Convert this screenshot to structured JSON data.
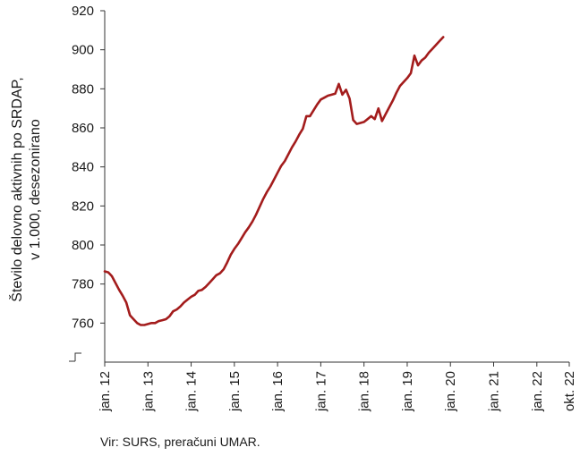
{
  "chart_data": {
    "type": "line",
    "ylabel_line1": "Število delovno aktivnih po SRDAP,",
    "ylabel_line2": "v 1.000, desezonirano",
    "ylim": [
      740,
      920
    ],
    "yticks": [
      760,
      780,
      800,
      820,
      840,
      860,
      880,
      900,
      920
    ],
    "x_tick_labels": [
      "jan. 12",
      "jan. 13",
      "jan. 14",
      "jan. 15",
      "jan. 16",
      "jan. 17",
      "jan. 18",
      "jan. 19",
      "jan. 20",
      "jan. 21",
      "jan. 22",
      "okt. 22"
    ],
    "x_tick_positions": [
      0,
      12,
      24,
      36,
      48,
      60,
      72,
      84,
      96,
      108,
      120,
      129
    ],
    "grid": false,
    "line_color": "#a31c1c",
    "series": [
      {
        "points": [
          [
            0,
            786.5
          ],
          [
            1,
            786
          ],
          [
            2,
            784
          ],
          [
            3,
            780.5
          ],
          [
            4,
            777
          ],
          [
            5,
            774
          ],
          [
            6,
            770.5
          ],
          [
            7,
            764
          ],
          [
            8,
            762
          ],
          [
            9,
            760
          ],
          [
            10,
            759
          ],
          [
            11,
            759
          ],
          [
            12,
            759.5
          ],
          [
            13,
            760
          ],
          [
            14,
            760
          ],
          [
            15,
            761
          ],
          [
            16,
            761.5
          ],
          [
            17,
            762
          ],
          [
            18,
            763.5
          ],
          [
            19,
            766
          ],
          [
            20,
            767
          ],
          [
            21,
            768.5
          ],
          [
            22,
            770.5
          ],
          [
            23,
            772
          ],
          [
            24,
            773.5
          ],
          [
            25,
            774.5
          ],
          [
            26,
            776.5
          ],
          [
            27,
            777
          ],
          [
            28,
            778.5
          ],
          [
            29,
            780.5
          ],
          [
            30,
            782.5
          ],
          [
            31,
            784.5
          ],
          [
            32,
            785.5
          ],
          [
            33,
            787.5
          ],
          [
            34,
            791
          ],
          [
            35,
            795
          ],
          [
            36,
            798
          ],
          [
            37,
            800.5
          ],
          [
            38,
            803.5
          ],
          [
            39,
            806.5
          ],
          [
            40,
            809
          ],
          [
            41,
            812
          ],
          [
            42,
            815.5
          ],
          [
            43,
            819.5
          ],
          [
            44,
            823.5
          ],
          [
            45,
            827
          ],
          [
            46,
            830
          ],
          [
            47,
            833.5
          ],
          [
            48,
            837
          ],
          [
            49,
            840.5
          ],
          [
            50,
            843
          ],
          [
            51,
            846.5
          ],
          [
            52,
            850
          ],
          [
            53,
            853
          ],
          [
            54,
            856.5
          ],
          [
            55,
            859.5
          ],
          [
            56,
            866
          ],
          [
            57,
            866
          ],
          [
            58,
            869
          ],
          [
            59,
            872
          ],
          [
            60,
            874.5
          ],
          [
            61,
            875.5
          ],
          [
            62,
            876.5
          ],
          [
            63,
            877
          ],
          [
            64,
            877.5
          ],
          [
            65,
            882.5
          ],
          [
            66,
            877
          ],
          [
            67,
            879.5
          ],
          [
            68,
            875
          ],
          [
            69,
            864
          ],
          [
            70,
            862
          ],
          [
            71,
            862.5
          ],
          [
            72,
            863
          ],
          [
            73,
            864.5
          ],
          [
            74,
            866
          ],
          [
            75,
            864.5
          ],
          [
            76,
            870
          ],
          [
            77,
            863.5
          ],
          [
            78,
            867
          ],
          [
            79,
            870.5
          ],
          [
            80,
            874
          ],
          [
            81,
            878
          ],
          [
            82,
            881.5
          ],
          [
            83,
            883.5
          ],
          [
            84,
            885.5
          ],
          [
            85,
            888
          ],
          [
            86,
            897
          ],
          [
            87,
            892
          ],
          [
            88,
            894.5
          ],
          [
            89,
            896
          ],
          [
            90,
            898.5
          ],
          [
            91,
            900.5
          ],
          [
            92,
            902.5
          ],
          [
            93,
            904.5
          ],
          [
            94,
            906.5
          ]
        ]
      }
    ]
  },
  "source": "Vir: SURS, preračuni UMAR."
}
